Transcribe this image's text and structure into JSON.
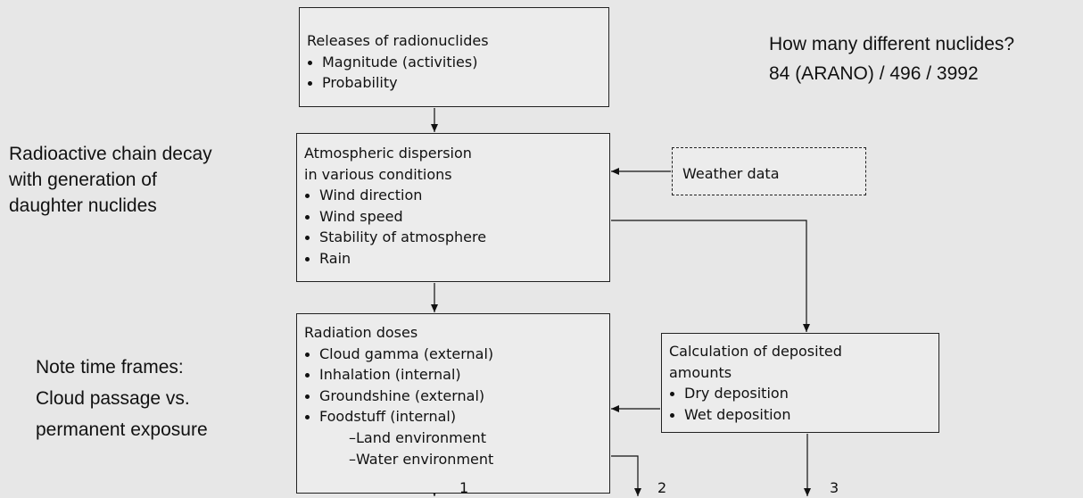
{
  "nodes": [
    {
      "lines": [
        "Releases of radionuclides"
      ],
      "items": [
        "Magnitude (activities)",
        "Probability"
      ]
    },
    {
      "lines": [
        "Atmospheric dispersion",
        "in various conditions"
      ],
      "items": [
        "Wind direction",
        "Wind speed",
        "Stability of atmosphere",
        "Rain"
      ]
    },
    {
      "lines": [
        "Radiation doses"
      ],
      "items": [
        "Cloud gamma (external)",
        "Inhalation (internal)",
        "Groundshine (external)",
        "Foodstuff (internal)"
      ],
      "subitems": [
        "–Land environment",
        "–Water environment"
      ]
    },
    {
      "lines": [
        "Weather data"
      ]
    },
    {
      "lines": [
        "Calculation of deposited",
        "amounts"
      ],
      "items": [
        "Dry deposition",
        "Wet deposition"
      ]
    }
  ],
  "notes": [
    {
      "lines": [
        "How many different nuclides?",
        "84 (ARANO) / 496 / 3992"
      ]
    },
    {
      "lines": [
        "Radioactive chain decay",
        "with generation of",
        "daughter nuclides"
      ]
    },
    {
      "lines": [
        "Note time frames:",
        "Cloud passage vs.",
        "permanent exposure"
      ]
    }
  ],
  "outputs": [
    "1",
    "2",
    "3"
  ]
}
